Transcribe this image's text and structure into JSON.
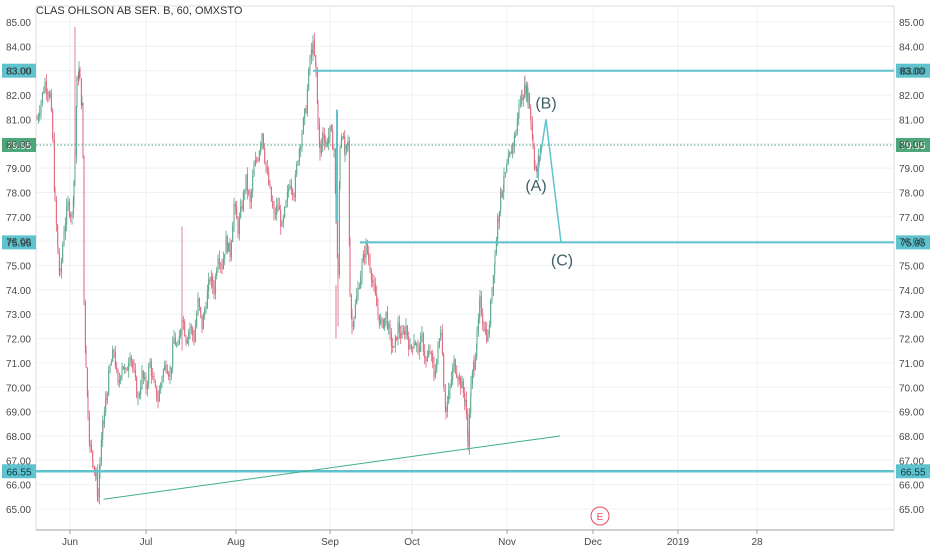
{
  "chart_data": {
    "type": "candlestick",
    "title": "CLAS OHLSON AB SER. B, 60, OMXSTO",
    "ylim": [
      64.3,
      85.6
    ],
    "y_ticks": [
      "65.00",
      "66.00",
      "67.00",
      "68.00",
      "69.00",
      "70.00",
      "71.00",
      "72.00",
      "73.00",
      "74.00",
      "75.00",
      "76.00",
      "77.00",
      "78.00",
      "79.00",
      "80.00",
      "81.00",
      "82.00",
      "83.00",
      "84.00",
      "85.00"
    ],
    "x_ticks": [
      {
        "label": "Jun",
        "x": 70
      },
      {
        "label": "Jul",
        "x": 146
      },
      {
        "label": "Aug",
        "x": 236
      },
      {
        "label": "Sep",
        "x": 330
      },
      {
        "label": "Oct",
        "x": 412
      },
      {
        "label": "Nov",
        "x": 507
      },
      {
        "label": "Dec",
        "x": 593
      },
      {
        "label": "2019",
        "x": 678
      },
      {
        "label": "28",
        "x": 757
      }
    ],
    "horizontal_levels": [
      {
        "value": 83.0,
        "label": "83.00",
        "color": "#5fc3cf"
      },
      {
        "value": 75.95,
        "label": "75.95",
        "color": "#5fc3cf"
      },
      {
        "value": 66.55,
        "label": "66.55",
        "color": "#5fc3cf"
      }
    ],
    "last_price": {
      "value": 79.95,
      "label": "79.95",
      "color": "#4ca67a"
    },
    "price_path": [
      [
        37,
        81.0
      ],
      [
        45,
        82.5
      ],
      [
        50,
        82.0
      ],
      [
        53,
        80.0
      ],
      [
        55,
        77.5
      ],
      [
        58,
        75.5
      ],
      [
        60,
        74.5
      ],
      [
        64,
        76.5
      ],
      [
        68,
        77.5
      ],
      [
        72,
        77.0
      ],
      [
        74,
        78.5
      ],
      [
        75,
        79.5
      ],
      [
        77,
        82.5
      ],
      [
        79,
        83.0
      ],
      [
        80,
        82.5
      ],
      [
        82,
        81.5
      ],
      [
        83,
        79.5
      ],
      [
        84,
        73.5
      ],
      [
        86,
        71.0
      ],
      [
        88,
        69.0
      ],
      [
        90,
        67.5
      ],
      [
        93,
        67.0
      ],
      [
        96,
        66.3
      ],
      [
        98,
        65.5
      ],
      [
        100,
        67.0
      ],
      [
        103,
        68.5
      ],
      [
        106,
        69.5
      ],
      [
        110,
        70.8
      ],
      [
        114,
        71.5
      ],
      [
        118,
        70.0
      ],
      [
        122,
        71.0
      ],
      [
        126,
        70.5
      ],
      [
        130,
        71.5
      ],
      [
        134,
        70.5
      ],
      [
        138,
        69.5
      ],
      [
        142,
        70.5
      ],
      [
        146,
        70.0
      ],
      [
        150,
        71.0
      ],
      [
        154,
        70.0
      ],
      [
        158,
        69.5
      ],
      [
        162,
        70.5
      ],
      [
        166,
        71.0
      ],
      [
        170,
        70.5
      ],
      [
        174,
        72.0
      ],
      [
        178,
        71.5
      ],
      [
        182,
        73.0
      ],
      [
        186,
        72.0
      ],
      [
        190,
        72.5
      ],
      [
        194,
        72.0
      ],
      [
        198,
        73.5
      ],
      [
        202,
        72.5
      ],
      [
        206,
        73.5
      ],
      [
        210,
        74.5
      ],
      [
        214,
        74.0
      ],
      [
        218,
        75.5
      ],
      [
        222,
        75.0
      ],
      [
        226,
        76.0
      ],
      [
        230,
        75.5
      ],
      [
        234,
        77.5
      ],
      [
        238,
        76.5
      ],
      [
        242,
        77.5
      ],
      [
        246,
        78.5
      ],
      [
        250,
        77.5
      ],
      [
        254,
        79.0
      ],
      [
        258,
        79.5
      ],
      [
        262,
        80.5
      ],
      [
        266,
        79.0
      ],
      [
        270,
        78.0
      ],
      [
        274,
        77.0
      ],
      [
        278,
        77.5
      ],
      [
        282,
        76.5
      ],
      [
        286,
        77.5
      ],
      [
        290,
        78.5
      ],
      [
        294,
        78.0
      ],
      [
        298,
        79.5
      ],
      [
        302,
        80.5
      ],
      [
        306,
        81.5
      ],
      [
        310,
        83.5
      ],
      [
        313,
        84.0
      ],
      [
        316,
        83.0
      ],
      [
        318,
        81.0
      ],
      [
        320,
        79.5
      ],
      [
        323,
        80.5
      ],
      [
        326,
        80.0
      ],
      [
        330,
        80.5
      ],
      [
        334,
        79.8
      ],
      [
        336,
        77.0
      ],
      [
        338,
        74.5
      ],
      [
        340,
        80.0
      ],
      [
        342,
        80.5
      ],
      [
        345,
        79.5
      ],
      [
        348,
        80.0
      ],
      [
        350,
        74.0
      ],
      [
        352,
        72.5
      ],
      [
        354,
        73.0
      ],
      [
        358,
        74.0
      ],
      [
        362,
        75.0
      ],
      [
        366,
        75.8
      ],
      [
        370,
        75.0
      ],
      [
        374,
        74.0
      ],
      [
        378,
        73.0
      ],
      [
        382,
        72.5
      ],
      [
        386,
        73.0
      ],
      [
        390,
        72.0
      ],
      [
        394,
        71.5
      ],
      [
        398,
        72.5
      ],
      [
        402,
        72.0
      ],
      [
        406,
        72.5
      ],
      [
        410,
        71.5
      ],
      [
        414,
        72.0
      ],
      [
        418,
        71.5
      ],
      [
        422,
        72.0
      ],
      [
        426,
        71.0
      ],
      [
        430,
        71.5
      ],
      [
        434,
        70.5
      ],
      [
        438,
        71.5
      ],
      [
        441,
        72.5
      ],
      [
        444,
        70.0
      ],
      [
        446,
        69.0
      ],
      [
        450,
        70.0
      ],
      [
        454,
        71.0
      ],
      [
        458,
        70.5
      ],
      [
        462,
        70.0
      ],
      [
        465,
        69.5
      ],
      [
        468,
        67.8
      ],
      [
        471,
        70.0
      ],
      [
        474,
        71.0
      ],
      [
        477,
        72.0
      ],
      [
        480,
        73.5
      ],
      [
        484,
        72.5
      ],
      [
        488,
        72.0
      ],
      [
        492,
        74.0
      ],
      [
        495,
        75.5
      ],
      [
        498,
        77.0
      ],
      [
        501,
        78.0
      ],
      [
        504,
        78.5
      ],
      [
        507,
        79.0
      ],
      [
        510,
        79.5
      ],
      [
        513,
        80.0
      ],
      [
        516,
        80.5
      ],
      [
        519,
        81.5
      ],
      [
        522,
        82.0
      ],
      [
        525,
        82.3
      ],
      [
        528,
        82.0
      ],
      [
        531,
        81.0
      ],
      [
        533,
        80.0
      ],
      [
        535,
        79.0
      ],
      [
        537,
        78.8
      ],
      [
        539,
        79.5
      ],
      [
        541,
        80.0
      ]
    ],
    "trendline": {
      "from": [
        "2018-06-13",
        65.4
      ],
      "to": [
        "2018-11-23",
        68.0
      ]
    },
    "wave_path": [
      [
        537,
        78.6
      ],
      [
        546,
        81.0
      ],
      [
        561,
        75.95
      ]
    ],
    "annotations": [
      {
        "text": "(B)",
        "x": 546,
        "y": 81.45
      },
      {
        "text": "(A)",
        "x": 536,
        "y": 78.05
      },
      {
        "text": "(C)",
        "x": 562,
        "y": 75.0
      }
    ],
    "event_marker": {
      "text": "E",
      "x": 600
    }
  }
}
